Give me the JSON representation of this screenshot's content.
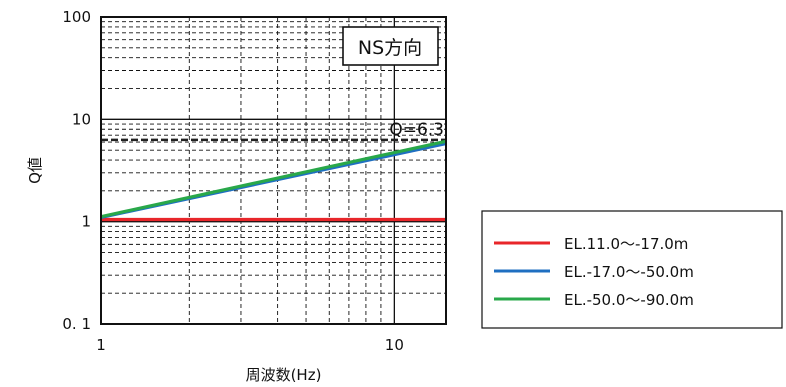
{
  "chart_data": {
    "type": "line",
    "xlabel": "周波数(Hz)",
    "ylabel": "Q値",
    "x_scale": "log",
    "y_scale": "log",
    "xlim": [
      1,
      15
    ],
    "ylim": [
      0.1,
      100
    ],
    "x_ticks": [
      {
        "value": 1,
        "label": "1"
      },
      {
        "value": 10,
        "label": "10"
      }
    ],
    "y_ticks": [
      {
        "value": 0.1,
        "label": "0. 1"
      },
      {
        "value": 1,
        "label": "1"
      },
      {
        "value": 10,
        "label": "10"
      },
      {
        "value": 100,
        "label": "100"
      }
    ],
    "grid": true,
    "annotations": {
      "direction": "NS方向",
      "q_line_label": "Q=6.3",
      "q_line_value": 6.3
    },
    "legend_position": "right",
    "series": [
      {
        "name": "EL.11.0〜-17.0m",
        "color": "#e8262a",
        "x": [
          1,
          15
        ],
        "y": [
          1.05,
          1.05
        ]
      },
      {
        "name": "EL.-17.0〜-50.0m",
        "color": "#1f6fc1",
        "x": [
          1,
          15
        ],
        "y": [
          1.1,
          5.8
        ]
      },
      {
        "name": "EL.-50.0〜-90.0m",
        "color": "#29a84a",
        "x": [
          1,
          15
        ],
        "y": [
          1.12,
          6.1
        ]
      }
    ]
  }
}
